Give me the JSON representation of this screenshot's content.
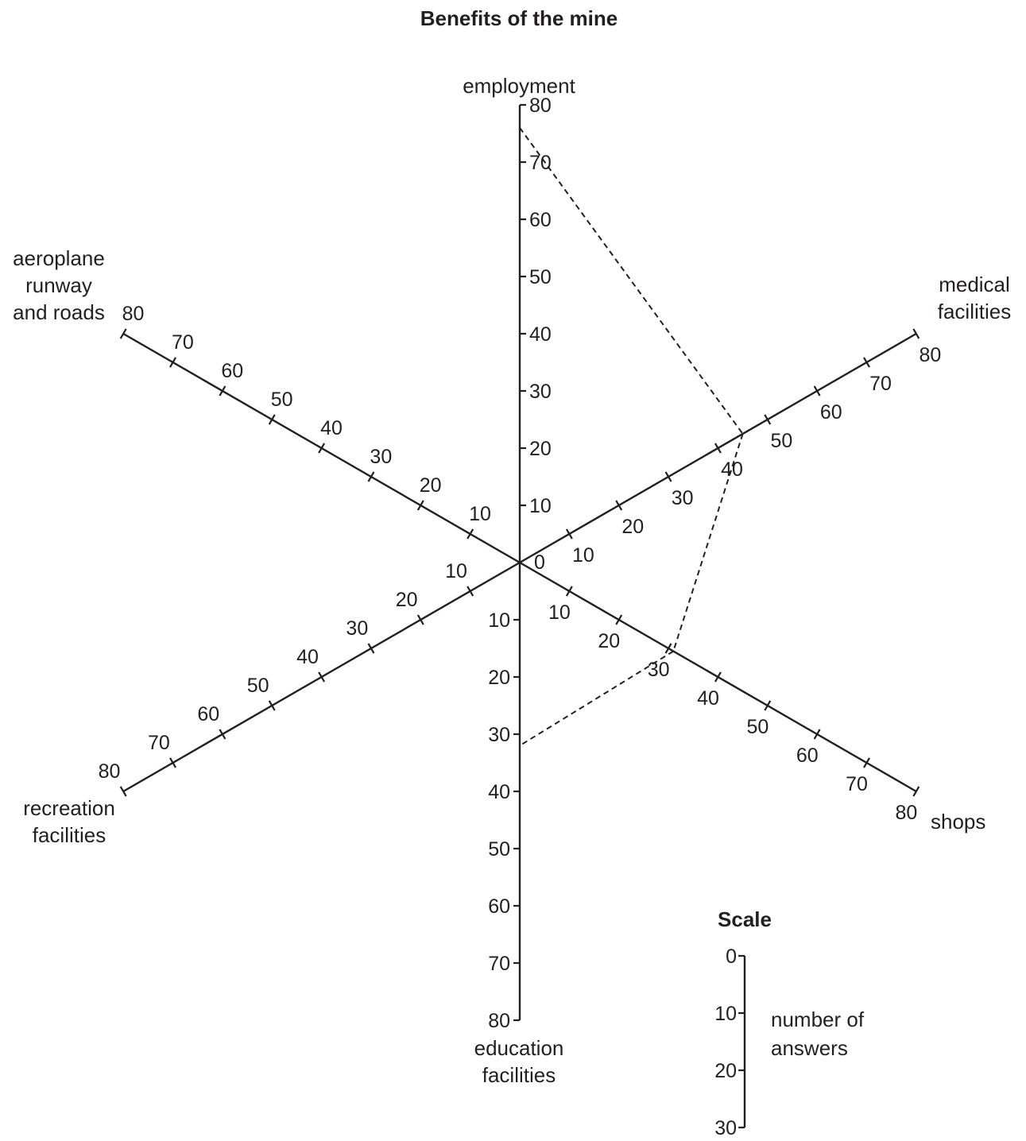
{
  "chart_data": {
    "type": "radar",
    "title": "Benefits of the mine",
    "range": [
      0,
      80
    ],
    "tick_values": [
      "10",
      "20",
      "30",
      "40",
      "50",
      "60",
      "70",
      "80"
    ],
    "origin_label": "0",
    "axes": [
      {
        "key": "employment",
        "label": [
          "employment"
        ],
        "value": 76
      },
      {
        "key": "medical",
        "label": [
          "medical",
          "facilities"
        ],
        "value": 45
      },
      {
        "key": "shops",
        "label": [
          "shops"
        ],
        "value": 31
      },
      {
        "key": "education",
        "label": [
          "education",
          "facilities"
        ],
        "value": 32
      },
      {
        "key": "recreation",
        "label": [
          "recreation",
          "facilities"
        ],
        "value": null
      },
      {
        "key": "aeroplane",
        "label": [
          "aeroplane",
          "runway",
          "and roads"
        ],
        "value": null
      }
    ],
    "line_style": "dashed",
    "scale": {
      "title": "Scale",
      "ticks": [
        "0",
        "10",
        "20",
        "30"
      ],
      "label": [
        "number of",
        "answers"
      ]
    }
  }
}
